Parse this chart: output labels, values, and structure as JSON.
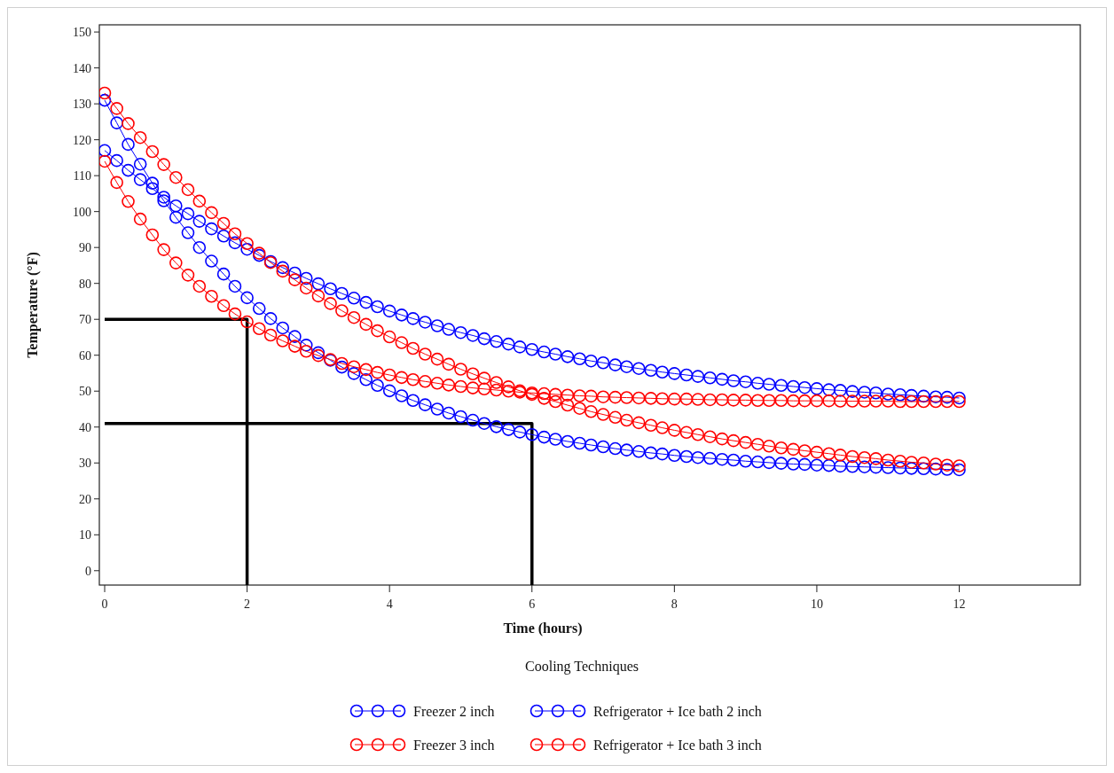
{
  "chart_data": {
    "type": "line",
    "xlabel": "Time (hours)",
    "ylabel": "Temperature (°F)",
    "legend_title": "Cooling Techniques",
    "legend": "bottom",
    "xlim": [
      -0.075,
      13.7
    ],
    "xticks": [
      0,
      2,
      4,
      6,
      8,
      10,
      12
    ],
    "ylim": [
      -4,
      152
    ],
    "yticks": [
      0,
      10,
      20,
      30,
      40,
      50,
      60,
      70,
      80,
      90,
      100,
      110,
      120,
      130,
      140,
      150
    ],
    "x": [
      0,
      0.17,
      0.33,
      0.5,
      0.67,
      0.83,
      1,
      1.17,
      1.33,
      1.5,
      1.67,
      1.83,
      2,
      2.17,
      2.33,
      2.5,
      2.67,
      2.83,
      3,
      3.17,
      3.33,
      3.5,
      3.67,
      3.83,
      4,
      4.17,
      4.33,
      4.5,
      4.67,
      4.83,
      5,
      5.17,
      5.33,
      5.5,
      5.67,
      5.83,
      6,
      6.17,
      6.33,
      6.5,
      6.67,
      6.83,
      7,
      7.17,
      7.33,
      7.5,
      7.67,
      7.83,
      8,
      8.17,
      8.33,
      8.5,
      8.67,
      8.83,
      9,
      9.17,
      9.33,
      9.5,
      9.67,
      9.83,
      10,
      10.17,
      10.33,
      10.5,
      10.67,
      10.83,
      11,
      11.17,
      11.33,
      11.5,
      11.67,
      11.83,
      12
    ],
    "series": [
      {
        "name": "Freezer 2 inch",
        "color": "#0000ff",
        "marker": "circle",
        "values": [
          131.0,
          124.7,
          118.7,
          113.2,
          107.9,
          103.0,
          98.4,
          94.1,
          90.0,
          86.2,
          82.6,
          79.2,
          76.0,
          73.0,
          70.2,
          67.6,
          65.2,
          62.8,
          60.7,
          58.6,
          56.7,
          54.9,
          53.2,
          51.6,
          50.1,
          48.7,
          47.4,
          46.2,
          45.0,
          43.9,
          42.9,
          41.9,
          41.0,
          40.1,
          39.3,
          38.6,
          37.9,
          37.2,
          36.6,
          36.0,
          35.5,
          35.0,
          34.5,
          34.0,
          33.6,
          33.2,
          32.8,
          32.5,
          32.1,
          31.8,
          31.5,
          31.3,
          31.0,
          30.8,
          30.5,
          30.3,
          30.1,
          29.9,
          29.7,
          29.6,
          29.4,
          29.3,
          29.1,
          29.0,
          28.9,
          28.8,
          28.7,
          28.6,
          28.5,
          28.4,
          28.3,
          28.2,
          28.1
        ]
      },
      {
        "name": "Refrigerator + Ice bath 2 inch",
        "color": "#0000ff",
        "marker": "circle",
        "values": [
          117.0,
          114.2,
          111.5,
          108.9,
          106.4,
          104.0,
          101.6,
          99.4,
          97.3,
          95.2,
          93.2,
          91.3,
          89.5,
          87.8,
          86.1,
          84.4,
          82.9,
          81.4,
          79.9,
          78.5,
          77.2,
          75.9,
          74.7,
          73.5,
          72.3,
          71.2,
          70.2,
          69.2,
          68.2,
          67.2,
          66.3,
          65.5,
          64.6,
          63.8,
          63.1,
          62.3,
          61.6,
          60.9,
          60.3,
          59.6,
          59.0,
          58.4,
          57.9,
          57.3,
          56.8,
          56.3,
          55.8,
          55.3,
          54.9,
          54.5,
          54.1,
          53.7,
          53.3,
          52.9,
          52.6,
          52.2,
          51.9,
          51.6,
          51.3,
          51.0,
          50.7,
          50.4,
          50.2,
          49.9,
          49.7,
          49.5,
          49.2,
          49.0,
          48.8,
          48.6,
          48.4,
          48.3,
          48.1
        ]
      },
      {
        "name": "Freezer 3 inch",
        "color": "#ff0000",
        "marker": "circle",
        "values": [
          133.0,
          128.7,
          124.5,
          120.6,
          116.7,
          113.1,
          109.5,
          106.1,
          102.9,
          99.7,
          96.7,
          93.8,
          91.1,
          88.4,
          85.8,
          83.4,
          81.0,
          78.7,
          76.5,
          74.4,
          72.4,
          70.5,
          68.6,
          66.8,
          65.1,
          63.5,
          61.9,
          60.3,
          58.9,
          57.5,
          56.1,
          54.8,
          53.6,
          52.4,
          51.2,
          50.1,
          49.1,
          48.0,
          47.1,
          46.1,
          45.2,
          44.3,
          43.5,
          42.7,
          41.9,
          41.2,
          40.5,
          39.8,
          39.1,
          38.5,
          37.9,
          37.3,
          36.7,
          36.2,
          35.7,
          35.2,
          34.7,
          34.2,
          33.8,
          33.4,
          33.0,
          32.6,
          32.2,
          31.8,
          31.5,
          31.2,
          30.8,
          30.5,
          30.2,
          30.0,
          29.7,
          29.4,
          29.2
        ]
      },
      {
        "name": "Refrigerator + Ice bath 3 inch",
        "color": "#ff0000",
        "marker": "circle",
        "values": [
          114.0,
          108.1,
          102.8,
          97.9,
          93.5,
          89.4,
          85.7,
          82.3,
          79.2,
          76.4,
          73.8,
          71.5,
          69.3,
          67.4,
          65.6,
          64.0,
          62.5,
          61.1,
          59.9,
          58.8,
          57.7,
          56.8,
          56.0,
          55.2,
          54.5,
          53.8,
          53.2,
          52.7,
          52.2,
          51.7,
          51.3,
          50.9,
          50.6,
          50.3,
          50.0,
          49.7,
          49.5,
          49.3,
          49.1,
          48.9,
          48.7,
          48.6,
          48.4,
          48.3,
          48.2,
          48.1,
          48.0,
          47.9,
          47.8,
          47.8,
          47.7,
          47.6,
          47.6,
          47.5,
          47.5,
          47.4,
          47.4,
          47.4,
          47.3,
          47.3,
          47.3,
          47.3,
          47.2,
          47.2,
          47.2,
          47.2,
          47.2,
          47.1,
          47.1,
          47.1,
          47.1,
          47.1,
          47.1
        ]
      },
      {
        "color": "#000000",
        "marker": "none",
        "x": [
          0,
          2,
          2
        ],
        "values": [
          70,
          70,
          -4
        ]
      },
      {
        "color": "#000000",
        "marker": "none",
        "x": [
          0,
          6,
          6
        ],
        "values": [
          41,
          41,
          -4
        ]
      }
    ]
  }
}
